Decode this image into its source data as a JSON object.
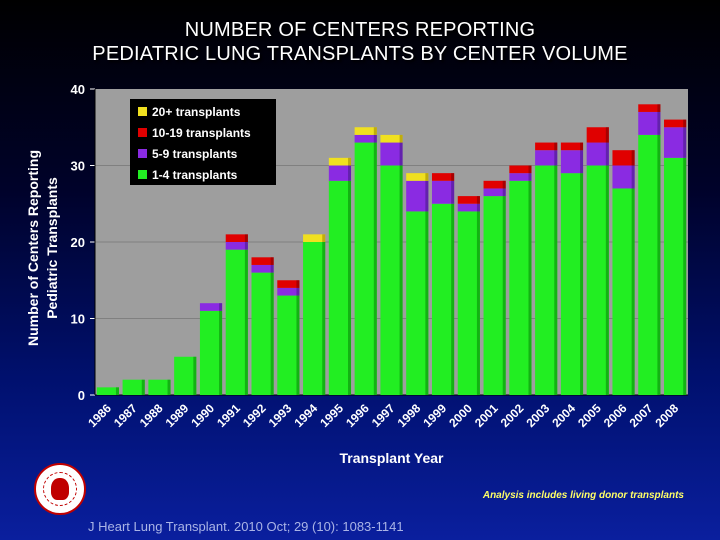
{
  "title_line1": "NUMBER OF CENTERS REPORTING",
  "title_line2": "PEDIATRIC LUNG TRANSPLANTS BY CENTER VOLUME",
  "note": "Analysis includes living donor transplants",
  "citation": "J Heart Lung Transplant. 2010 Oct; 29 (10): 1083-1141",
  "colors": {
    "background": "#00106e",
    "plot_bg": "#9e9e9e",
    "series": [
      "#22ee22",
      "#8a2be2",
      "#e00000",
      "#f0e020"
    ]
  },
  "chart_data": {
    "type": "bar",
    "stacked": true,
    "xlabel": "Transplant Year",
    "ylabel_line1": "Number of Centers Reporting",
    "ylabel_line2": "Pediatric Transplants",
    "ylim": [
      0,
      40
    ],
    "yticks": [
      0,
      10,
      20,
      30,
      40
    ],
    "legend_position": "top-left",
    "categories": [
      "1986",
      "1987",
      "1988",
      "1989",
      "1990",
      "1991",
      "1992",
      "1993",
      "1994",
      "1995",
      "1996",
      "1997",
      "1998",
      "1999",
      "2000",
      "2001",
      "2002",
      "2003",
      "2004",
      "2005",
      "2006",
      "2007",
      "2008"
    ],
    "series": [
      {
        "name": "1-4 transplants",
        "values": [
          1,
          2,
          2,
          5,
          11,
          19,
          16,
          13,
          20,
          28,
          33,
          30,
          24,
          25,
          24,
          26,
          28,
          30,
          29,
          30,
          27,
          34,
          31
        ]
      },
      {
        "name": "5-9 transplants",
        "values": [
          0,
          0,
          0,
          0,
          1,
          1,
          1,
          1,
          0,
          2,
          1,
          3,
          4,
          3,
          1,
          1,
          1,
          2,
          3,
          3,
          3,
          3,
          4
        ]
      },
      {
        "name": "10-19 transplants",
        "values": [
          0,
          0,
          0,
          0,
          0,
          1,
          1,
          1,
          0,
          0,
          0,
          0,
          0,
          1,
          1,
          1,
          1,
          1,
          1,
          2,
          2,
          1,
          1
        ]
      },
      {
        "name": "20+ transplants",
        "values": [
          0,
          0,
          0,
          0,
          0,
          0,
          0,
          0,
          1,
          1,
          1,
          1,
          1,
          0,
          0,
          0,
          0,
          0,
          0,
          0,
          0,
          0,
          0
        ]
      }
    ],
    "legend_order": [
      "20+ transplants",
      "10-19 transplants",
      "5-9 transplants",
      "1-4 transplants"
    ]
  }
}
